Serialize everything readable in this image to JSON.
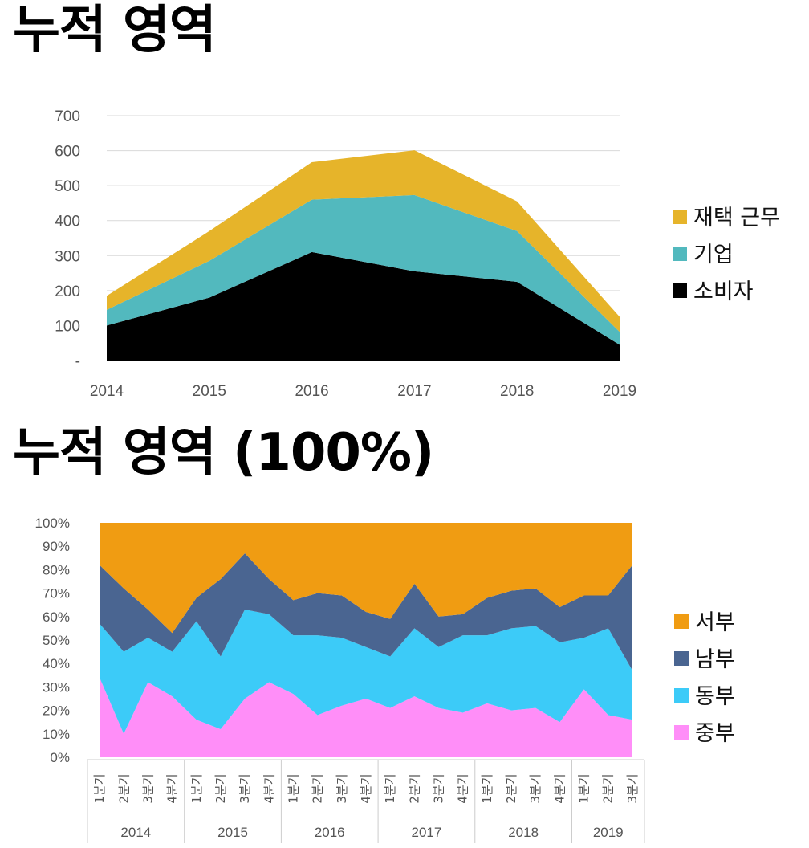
{
  "titles": {
    "chart1": "누적 영역",
    "chart2": "누적 영역 (100%)"
  },
  "chart_data": [
    {
      "type": "area",
      "stacked": true,
      "title": "누적 영역",
      "x": [
        "2014",
        "2015",
        "2016",
        "2017",
        "2018",
        "2019"
      ],
      "series": [
        {
          "name": "소비자",
          "color": "#000000",
          "values": [
            100,
            180,
            310,
            255,
            225,
            45
          ]
        },
        {
          "name": "기업",
          "color": "#52B9BE",
          "values": [
            45,
            105,
            150,
            218,
            145,
            37
          ]
        },
        {
          "name": "재택 근무",
          "color": "#E6B42A",
          "values": [
            40,
            85,
            107,
            128,
            85,
            43
          ]
        }
      ],
      "yticks": [
        "-",
        "100",
        "200",
        "300",
        "400",
        "500",
        "600",
        "700"
      ],
      "ylim": [
        0,
        700
      ],
      "grid": true,
      "legend": "right"
    },
    {
      "type": "area",
      "stacked": true,
      "percent": true,
      "title": "누적 영역 (100%)",
      "quarters": [
        "1분기",
        "2분기",
        "3분기",
        "4분기"
      ],
      "years": [
        "2014",
        "2015",
        "2016",
        "2017",
        "2018",
        "2019"
      ],
      "series": [
        {
          "name": "중부",
          "color": "#FF8EF8",
          "values": [
            34,
            10,
            32,
            26,
            16,
            12,
            25,
            32,
            27,
            18,
            22,
            25,
            21,
            26,
            21,
            19,
            23,
            20,
            21,
            15,
            29,
            18,
            16
          ]
        },
        {
          "name": "동부",
          "color": "#3CCBF8",
          "values": [
            23,
            35,
            19,
            19,
            42,
            31,
            38,
            29,
            25,
            34,
            29,
            22,
            22,
            29,
            26,
            33,
            29,
            35,
            35,
            34,
            22,
            37,
            21
          ]
        },
        {
          "name": "남부",
          "color": "#4A6591",
          "values": [
            25,
            27,
            12,
            8,
            10,
            33,
            24,
            15,
            15,
            18,
            18,
            15,
            16,
            19,
            13,
            9,
            16,
            16,
            16,
            15,
            18,
            14,
            45
          ]
        },
        {
          "name": "서부",
          "color": "#F09C12",
          "values": [
            18,
            28,
            37,
            47,
            32,
            24,
            13,
            24,
            33,
            30,
            31,
            38,
            41,
            26,
            40,
            39,
            32,
            29,
            28,
            36,
            31,
            31,
            18
          ]
        }
      ],
      "yticks": [
        "0%",
        "10%",
        "20%",
        "30%",
        "40%",
        "50%",
        "60%",
        "70%",
        "80%",
        "90%",
        "100%"
      ],
      "ylim": [
        0,
        100
      ],
      "grid": false,
      "legend": "right"
    }
  ]
}
